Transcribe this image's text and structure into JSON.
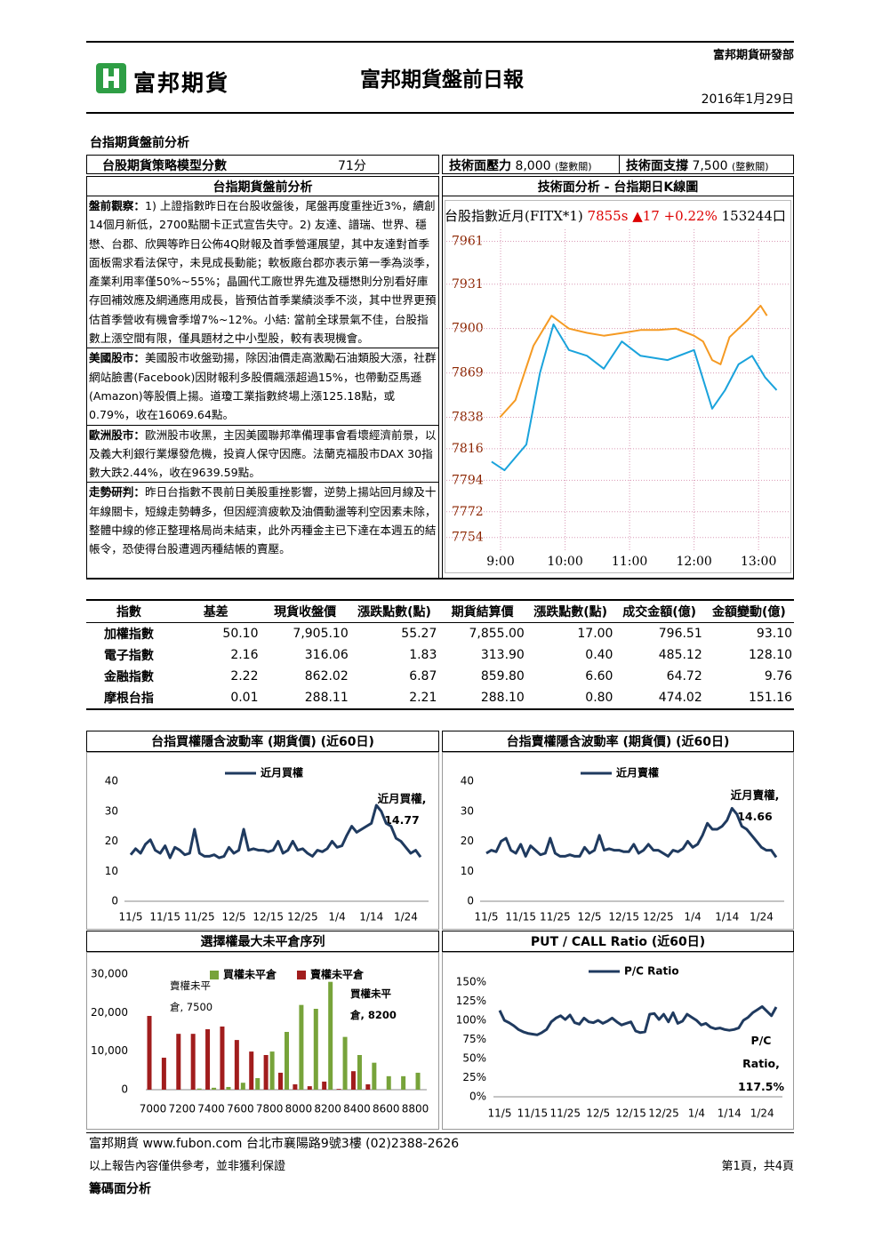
{
  "header": {
    "department": "富邦期貨研發部",
    "logo": "富邦期貨",
    "title": "富邦期貨盤前日報",
    "date": "2016年1月29日"
  },
  "section_title": "台指期貨盤前分析",
  "strategy": {
    "score_label": "台股期貨策略模型分數",
    "score": "71分",
    "resistance_label": "技術面壓力",
    "resistance": "8,000",
    "resistance_note": "(整數關)",
    "support_label": "技術面支撐",
    "support": "7,500",
    "support_note": "(整數關)"
  },
  "analysis": {
    "heading": "台指期貨盤前分析",
    "paragraphs": [
      {
        "label": "盤前觀察：",
        "text": "1) 上證指數昨日在台股收盤後，尾盤再度重挫近3%，續創14個月新低，2700點關卡正式宣告失守。2) 友達、譜瑞、世界、穩懋、台郡、欣興等昨日公佈4Q財報及首季營運展望，其中友達對首季面板需求看法保守，未見成長動能；軟板廠台郡亦表示第一季為淡季，產業利用率僅50%~55%；晶圓代工廠世界先進及穩懋則分別看好庫存回補效應及網通應用成長，皆預估首季業績淡季不淡，其中世界更預估首季營收有機會季增7%~12%。小結: 當前全球景氣不佳，台股指數上漲空間有限，僅具題材之中小型股，較有表現機會。"
      },
      {
        "label": "美國股市：",
        "text": "美國股市收盤勁揚，除因油價走高激勵石油類股大漲，社群網站臉書(Facebook)因財報利多股價飆漲超過15%，也帶動亞馬遜(Amazon)等股價上揚。道瓊工業指數終場上漲125.18點，或0.79%，收在16069.64點。"
      },
      {
        "label": "歐洲股市：",
        "text": "歐洲股市收黑，主因美國聯邦準備理事會看壞經濟前景，以及義大利銀行業爆發危機，投資人保守因應。法蘭克福股市DAX 30指數大跌2.44%，收在9639.59點。"
      },
      {
        "label": "走勢研判：",
        "text": "昨日台指數不畏前日美股重挫影響，逆勢上揚站回月線及十年線關卡，短線走勢轉多，但因經濟疲軟及油價動盪等利空因素未除，整體中線的修正整理格局尚未結束，此外丙種金主已下達在本週五的結帳令，恐使得台股遭週丙種結帳的賣壓。"
      }
    ]
  },
  "table": {
    "columns": [
      "指數",
      "基差",
      "現貨收盤價",
      "漲跌點數(點)",
      "期貨結算價",
      "漲跌點數(點)",
      "成交金額(億)",
      "金額變動(億)"
    ],
    "rows": [
      [
        "加權指數",
        "50.10",
        "7,905.10",
        "55.27",
        "7,855.00",
        "17.00",
        "796.51",
        "93.10"
      ],
      [
        "電子指數",
        "2.16",
        "316.06",
        "1.83",
        "313.90",
        "0.40",
        "485.12",
        "128.10"
      ],
      [
        "金融指數",
        "2.22",
        "862.02",
        "6.87",
        "859.80",
        "6.60",
        "64.72",
        "9.76"
      ],
      [
        "摩根台指",
        "0.01",
        "288.11",
        "2.21",
        "288.10",
        "0.80",
        "474.02",
        "151.16"
      ]
    ]
  },
  "footer": {
    "company": "富邦期貨 www.fubon.com 台北市襄陽路9號3樓 (02)2388-2626",
    "disclaimer": "以上報告內容僅供參考，並非獲利保證",
    "page": "第1頁，共4頁",
    "next_section": "籌碼面分析"
  },
  "chart_data": [
    {
      "type": "line",
      "title": "技術面分析 - 台指期日K線圖",
      "quote": {
        "symbol": "台股指數近月(FITX*1)",
        "price": "7855s",
        "change": "▲17",
        "percent": "+0.22%",
        "volume": "153244口"
      },
      "xlim": [
        8.2,
        13.48
      ],
      "xticks": [
        {
          "value": 9,
          "label": "9:00"
        },
        {
          "value": 10,
          "label": "10:00"
        },
        {
          "value": 11,
          "label": "11:00"
        },
        {
          "value": 12,
          "label": "12:00"
        },
        {
          "value": 13,
          "label": "13:00"
        }
      ],
      "ylim": [
        7729,
        7988
      ],
      "yticks": [
        7961,
        7931,
        7900,
        7869,
        7838,
        7816,
        7794,
        7772,
        7754
      ],
      "grid": true,
      "series": [
        {
          "color": "#f59a23",
          "x": [
            8.99,
            9.23,
            9.51,
            9.79,
            10.06,
            10.34,
            10.6,
            10.9,
            11.17,
            11.45,
            11.72,
            12.0,
            12.14,
            12.28,
            12.41,
            12.55,
            12.83,
            13.03,
            13.13
          ],
          "values": [
            7838,
            7850,
            7888,
            7909,
            7900,
            7897,
            7895,
            7897,
            7899,
            7899,
            7900,
            7895,
            7891,
            7878,
            7875,
            7894,
            7906,
            7916,
            7909
          ]
        },
        {
          "color": "#1aa3dc",
          "x": [
            8.86,
            9.06,
            9.4,
            9.61,
            9.82,
            10.06,
            10.34,
            10.6,
            10.88,
            11.17,
            11.59,
            12.0,
            12.28,
            12.48,
            12.69,
            12.9,
            13.1,
            13.28
          ],
          "values": [
            7807,
            7801,
            7819,
            7869,
            7903,
            7885,
            7881,
            7872,
            7891,
            7881,
            7878,
            7885,
            7844,
            7857,
            7875,
            7881,
            7866,
            7857
          ]
        }
      ]
    },
    {
      "type": "line",
      "title": "台指買權隱含波動率 (期貨價) (近60日)",
      "categories": [
        "11/5",
        null,
        null,
        null,
        null,
        null,
        null,
        "11/15",
        null,
        null,
        null,
        null,
        null,
        null,
        "11/25",
        null,
        null,
        null,
        null,
        null,
        null,
        "12/5",
        null,
        null,
        null,
        null,
        null,
        null,
        "12/15",
        null,
        null,
        null,
        null,
        null,
        null,
        "12/25",
        null,
        null,
        null,
        null,
        null,
        null,
        "1/4",
        null,
        null,
        null,
        null,
        null,
        null,
        "1/14",
        null,
        null,
        null,
        null,
        null,
        null,
        "1/24",
        null,
        null,
        null
      ],
      "ylim": [
        0,
        40
      ],
      "yticks": [
        0,
        10,
        20,
        30,
        40
      ],
      "series": [
        {
          "name": "近月買權",
          "data_label_name": "近月買權,",
          "color": "#1f3a5f",
          "values": [
            15.5,
            17.5,
            16,
            19,
            20.5,
            17,
            16,
            18.5,
            14.5,
            18,
            17,
            15.5,
            16,
            24,
            16,
            15,
            15,
            15.5,
            14.5,
            15,
            18,
            16,
            17,
            24,
            17,
            17.5,
            17,
            17,
            16.5,
            17,
            20,
            16,
            17,
            20,
            17,
            17.5,
            16,
            15,
            17,
            16.5,
            17.5,
            20,
            18,
            18.5,
            22,
            25,
            23,
            24,
            25,
            26,
            32,
            30,
            26,
            25,
            21,
            20,
            18,
            16,
            17,
            14.77
          ]
        }
      ]
    },
    {
      "type": "line",
      "title": "台指賣權隱含波動率 (期貨價) (近60日)",
      "categories": [
        "11/5",
        null,
        null,
        null,
        null,
        null,
        null,
        "11/15",
        null,
        null,
        null,
        null,
        null,
        null,
        "11/25",
        null,
        null,
        null,
        null,
        null,
        null,
        "12/5",
        null,
        null,
        null,
        null,
        null,
        null,
        "12/15",
        null,
        null,
        null,
        null,
        null,
        null,
        "12/25",
        null,
        null,
        null,
        null,
        null,
        null,
        "1/4",
        null,
        null,
        null,
        null,
        null,
        null,
        "1/14",
        null,
        null,
        null,
        null,
        null,
        null,
        "1/24",
        null,
        null,
        null
      ],
      "ylim": [
        0,
        40
      ],
      "yticks": [
        0,
        10,
        20,
        30,
        40
      ],
      "series": [
        {
          "name": "近月賣權",
          "data_label_name": "近月賣權,",
          "color": "#1f3a5f",
          "values": [
            16,
            17,
            16.5,
            20,
            21,
            17,
            16,
            19,
            15,
            18.5,
            17,
            15.5,
            16,
            21,
            16,
            15,
            15,
            15.5,
            15,
            15,
            18,
            16,
            17,
            22,
            17,
            17.5,
            17,
            17,
            16.5,
            16.5,
            19,
            16,
            17,
            19,
            17,
            17,
            16,
            15,
            17,
            16.5,
            17.5,
            20,
            18,
            19,
            22,
            26,
            24,
            24,
            25,
            27,
            31,
            29,
            25,
            24,
            22,
            20,
            18,
            17,
            17,
            14.66
          ]
        }
      ]
    },
    {
      "type": "bar",
      "title": "選擇權最大未平倉序列",
      "categories": [
        "7000",
        null,
        "7200",
        null,
        "7400",
        null,
        "7600",
        null,
        "7800",
        null,
        "8000",
        null,
        "8200",
        null,
        "8400",
        null,
        "8600",
        null,
        "8800"
      ],
      "ylim": [
        0,
        30000
      ],
      "yticks": [
        0,
        {
          "value": 10000,
          "label": "10,000"
        },
        {
          "value": 20000,
          "label": "20,000"
        },
        {
          "value": 30000,
          "label": "30,000"
        }
      ],
      "series": [
        {
          "name": "買權未平倉",
          "color": "#77a33a",
          "values": [
            0,
            0,
            0,
            300,
            500,
            700,
            1800,
            3000,
            9900,
            15000,
            22000,
            21000,
            28000,
            13700,
            9000,
            7000,
            3500,
            3500,
            4400
          ]
        },
        {
          "name": "賣權未平倉",
          "color": "#a11d1d",
          "values": [
            19150,
            8300,
            14500,
            14500,
            15700,
            16400,
            12900,
            9900,
            9000,
            4400,
            1400,
            900,
            2100,
            200,
            4800,
            1400,
            0,
            0,
            0
          ]
        }
      ],
      "annotations": [
        "賣權未平倉, 7500",
        "買權未平倉, 8200"
      ]
    },
    {
      "type": "line",
      "title": "PUT / CALL Ratio (近60日)",
      "categories": [
        "11/5",
        null,
        null,
        null,
        null,
        null,
        null,
        "11/15",
        null,
        null,
        null,
        null,
        null,
        null,
        "11/25",
        null,
        null,
        null,
        null,
        null,
        null,
        "12/5",
        null,
        null,
        null,
        null,
        null,
        null,
        "12/15",
        null,
        null,
        null,
        null,
        null,
        null,
        "12/25",
        null,
        null,
        null,
        null,
        null,
        null,
        "1/4",
        null,
        null,
        null,
        null,
        null,
        null,
        "1/14",
        null,
        null,
        null,
        null,
        null,
        null,
        "1/24",
        null,
        null,
        null
      ],
      "ylim": [
        0,
        150
      ],
      "yticks": [
        {
          "value": 0,
          "label": "0%"
        },
        {
          "value": 25,
          "label": "25%"
        },
        {
          "value": 50,
          "label": "50%"
        },
        {
          "value": 75,
          "label": "75%"
        },
        {
          "value": 100,
          "label": "100%"
        },
        {
          "value": 125,
          "label": "125%"
        },
        {
          "value": 150,
          "label": "150%"
        }
      ],
      "series": [
        {
          "name": "P/C Ratio",
          "data_label_name": "P/C Ratio,",
          "color": "#1f3a5f",
          "values": [
            113,
            100,
            97,
            93,
            88,
            85,
            83,
            82,
            81,
            84,
            88,
            98,
            103,
            106,
            101,
            107,
            97,
            95,
            103,
            98,
            97,
            100,
            96,
            99,
            103,
            98,
            94,
            96,
            98,
            86,
            84,
            85,
            108,
            109,
            101,
            108,
            98,
            110,
            96,
            99,
            108,
            104,
            100,
            94,
            96,
            91,
            89,
            90,
            88,
            87,
            88,
            90,
            100,
            104,
            110,
            114,
            118,
            112,
            106,
            117.5
          ],
          "value_labels": [
            null,
            null,
            null,
            null,
            null,
            null,
            null,
            null,
            null,
            null,
            null,
            null,
            null,
            null,
            null,
            null,
            null,
            null,
            null,
            null,
            null,
            null,
            null,
            null,
            null,
            null,
            null,
            null,
            null,
            null,
            null,
            null,
            null,
            null,
            null,
            null,
            null,
            null,
            null,
            null,
            null,
            null,
            null,
            null,
            null,
            null,
            null,
            null,
            null,
            null,
            null,
            null,
            null,
            null,
            null,
            null,
            null,
            null,
            null,
            "117.5%"
          ]
        }
      ]
    }
  ]
}
